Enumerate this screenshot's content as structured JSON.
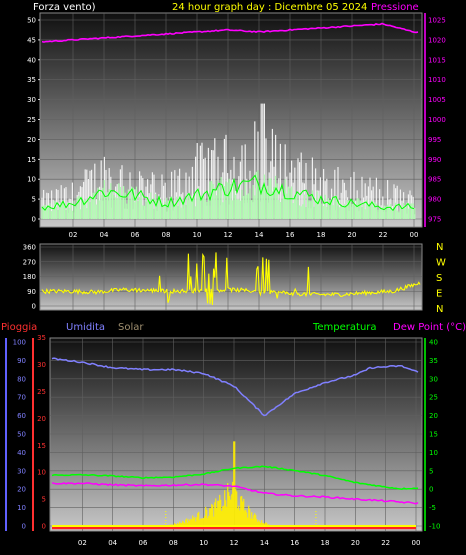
{
  "header": {
    "left": "Forza vento)",
    "center": "24 hour graph day : Dicembre 05 2024",
    "right": "Pressione"
  },
  "colors": {
    "wind_label": "#ffffff",
    "title": "#ffff00",
    "pressure": "#ff00ff",
    "direction": "#ffff00",
    "rain": "#ff3030",
    "humidity": "#8080ff",
    "solar": "#a09070",
    "temperature": "#00ff00",
    "dew_point": "#ff00ff"
  },
  "wind_panel": {
    "left_ticks": [
      "0",
      "5",
      "10",
      "15",
      "20",
      "25",
      "30",
      "35",
      "40",
      "45",
      "50"
    ],
    "right_ticks": [
      "975",
      "980",
      "985",
      "990",
      "995",
      "1000",
      "1005",
      "1010",
      "1015",
      "1020",
      "1025"
    ],
    "x_ticks": [
      "02",
      "04",
      "06",
      "08",
      "10",
      "12",
      "14",
      "16",
      "18",
      "20",
      "22",
      "00"
    ]
  },
  "dir_panel": {
    "left_ticks": [
      "0",
      "90",
      "180",
      "270",
      "360"
    ],
    "compass": [
      "N",
      "W",
      "S",
      "E",
      "N"
    ]
  },
  "bottom_panel": {
    "labels": {
      "rain": "Pioggia",
      "humidity": "Umidita",
      "solar": "Solar",
      "temperature": "Temperatura",
      "dew": "Dew Point (°C)"
    },
    "hum_ticks": [
      "0",
      "10",
      "20",
      "30",
      "40",
      "50",
      "60",
      "70",
      "80",
      "90",
      "100"
    ],
    "rain_ticks": [
      "0",
      "5",
      "10",
      "15",
      "20",
      "25",
      "30",
      "35"
    ],
    "temp_ticks": [
      "-10",
      "-5",
      "0",
      "5",
      "10",
      "15",
      "20",
      "25",
      "30",
      "35",
      "40"
    ],
    "x_ticks": [
      "02",
      "04",
      "06",
      "08",
      "10",
      "12",
      "14",
      "16",
      "18",
      "20",
      "22",
      "00"
    ]
  },
  "chart_data": [
    {
      "type": "line",
      "xlabel": "",
      "ylabel": "",
      "x": [
        0,
        2,
        4,
        6,
        8,
        10,
        12,
        14,
        16,
        18,
        20,
        22,
        24
      ],
      "xlim": [
        0,
        24
      ],
      "ylim": [
        0,
        50
      ],
      "y2lim": [
        975,
        1025
      ],
      "series": [
        {
          "name": "Pressione",
          "axis": "right",
          "values": [
            1019.5,
            1020,
            1020.5,
            1021,
            1021.5,
            1022,
            1022.5,
            1022,
            1022.5,
            1023,
            1023.5,
            1024,
            1022
          ]
        },
        {
          "axis": "left",
          "style": "bars",
          "values": [
            6,
            8,
            15,
            12,
            9,
            16,
            18,
            22,
            16,
            12,
            10,
            9,
            6
          ]
        },
        {
          "axis": "left",
          "values": [
            3,
            4,
            7,
            6,
            4,
            6,
            8,
            9,
            7,
            5,
            4,
            3,
            3
          ]
        }
      ]
    },
    {
      "type": "line",
      "xlim": [
        0,
        24
      ],
      "ylim": [
        0,
        360
      ],
      "series": [
        {
          "values": [
            90,
            90,
            85,
            100,
            95,
            90,
            95,
            100,
            90,
            80,
            70,
            70,
            80,
            90,
            140
          ]
        }
      ]
    },
    {
      "type": "line",
      "xlim": [
        0,
        24
      ],
      "ylim": [
        0,
        100
      ],
      "y2lim": [
        -10,
        40
      ],
      "series": [
        {
          "name": "Umidita",
          "axis": "left",
          "x": [
            0,
            2,
            4,
            6,
            8,
            10,
            12,
            14,
            16,
            18,
            20,
            21,
            23,
            24
          ],
          "values": [
            91,
            89,
            86,
            85,
            85,
            83,
            76,
            60,
            72,
            78,
            82,
            86,
            87,
            84
          ]
        },
        {
          "name": "Temperatura",
          "axis": "right",
          "x": [
            0,
            2,
            4,
            6,
            8,
            10,
            12,
            14,
            16,
            18,
            20,
            22,
            23,
            24
          ],
          "values": [
            3.8,
            3.9,
            3.6,
            3.1,
            3.3,
            4.1,
            5.7,
            6.2,
            5.1,
            3.7,
            1.8,
            0.6,
            0.1,
            0.3
          ]
        },
        {
          "name": "Dew Point",
          "axis": "right",
          "x": [
            0,
            2,
            4,
            6,
            8,
            10,
            12,
            14,
            16,
            18,
            20,
            22,
            24
          ],
          "values": [
            1.6,
            1.6,
            1.2,
            0.9,
            1.1,
            1.3,
            0.8,
            -1.1,
            -1.8,
            -2.1,
            -2.7,
            -3.2,
            -3.8
          ]
        },
        {
          "name": "Solar",
          "axis": "left",
          "x": [
            7.5,
            8.5,
            9.5,
            10.5,
            11,
            11.5,
            12,
            12.5,
            13,
            13.5,
            14.5
          ],
          "values": [
            0,
            2,
            5,
            9,
            12,
            16,
            20,
            12,
            8,
            4,
            0
          ]
        },
        {
          "name": "Pioggia",
          "axis": "left",
          "x": [
            0,
            24
          ],
          "values": [
            0,
            0
          ]
        }
      ]
    }
  ]
}
